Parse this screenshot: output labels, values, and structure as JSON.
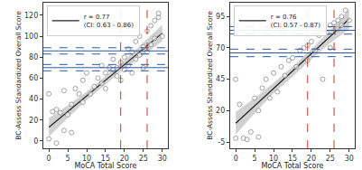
{
  "chart_data": [
    {
      "type": "scatter",
      "x_label": "MoCA Total Score",
      "y_label": "BC-Assess Standardized Overall Score",
      "xlim": [
        -1.5,
        31.5
      ],
      "ylim": [
        -7,
        132
      ],
      "xticks": [
        0,
        5,
        10,
        15,
        20,
        25,
        30
      ],
      "yticks": [
        0,
        20,
        40,
        60,
        80,
        100,
        120
      ],
      "grid": false,
      "legend": "upper left",
      "marker": "open_circle",
      "color": "#8a8a8a",
      "x": [
        0,
        1,
        2,
        3,
        4,
        5,
        6,
        7,
        8,
        9,
        9,
        10,
        11,
        12,
        13,
        14,
        14,
        15,
        15,
        16,
        17,
        17,
        18,
        18,
        19,
        19,
        20,
        20,
        21,
        21,
        22,
        22,
        23,
        23,
        24,
        24,
        25,
        25,
        26,
        26,
        27,
        27,
        28,
        28,
        29,
        29,
        30,
        0,
        2,
        4,
        6
      ],
      "y": [
        45,
        28,
        30,
        27,
        48,
        25,
        35,
        50,
        45,
        37,
        58,
        65,
        45,
        52,
        60,
        55,
        72,
        65,
        50,
        70,
        68,
        78,
        62,
        70,
        75,
        58,
        80,
        68,
        72,
        88,
        85,
        65,
        78,
        95,
        82,
        100,
        90,
        70,
        85,
        105,
        92,
        110,
        98,
        115,
        118,
        122,
        100,
        2,
        -2,
        10,
        8
      ],
      "fit": {
        "name": [
          "r = 0.77",
          "(CI: 0.63 - 0.86)"
        ],
        "color": "#222222",
        "x": [
          0,
          30
        ],
        "y": [
          13,
          103
        ]
      },
      "band": {
        "x": [
          0,
          5,
          10,
          15,
          20,
          25,
          30
        ],
        "lower": [
          4,
          22,
          39,
          54,
          69,
          82,
          95
        ],
        "upper": [
          22,
          34,
          47,
          62,
          77,
          94,
          111
        ]
      },
      "hlines": [
        {
          "value": 70,
          "line_style": "solid",
          "color": "#2c5aa0"
        },
        {
          "value": 67,
          "line_style": "dashed",
          "color": "#2c5aa0"
        },
        {
          "value": 73,
          "line_style": "dashed",
          "color": "#2c5aa0"
        },
        {
          "value": 86,
          "line_style": "solid",
          "color": "#2c5aa0"
        },
        {
          "value": 83,
          "line_style": "dashed",
          "color": "#2c5aa0"
        },
        {
          "value": 89,
          "line_style": "dashed",
          "color": "#2c5aa0"
        }
      ],
      "vlines": [
        {
          "value": 19,
          "line_style": "dashed",
          "color": "#c0392b"
        },
        {
          "value": 26,
          "line_style": "dashed",
          "color": "#c0392b"
        }
      ]
    },
    {
      "type": "scatter",
      "x_label": "MoCA Total Score",
      "y_label": "BC-Assess Standardized Overall Score",
      "xlim": [
        -1.5,
        31.5
      ],
      "ylim": [
        -10,
        106
      ],
      "xticks": [
        0,
        5,
        10,
        15,
        20,
        25,
        30
      ],
      "yticks": [
        -5,
        20,
        45,
        70,
        95
      ],
      "grid": false,
      "legend": "upper left",
      "marker": "open_circle",
      "color": "#8a8a8a",
      "x": [
        0,
        1,
        2,
        3,
        4,
        5,
        6,
        7,
        8,
        9,
        10,
        11,
        12,
        13,
        14,
        15,
        16,
        17,
        18,
        19,
        19,
        20,
        21,
        22,
        23,
        23,
        24,
        25,
        25,
        26,
        27,
        27,
        28,
        29,
        30,
        28,
        0,
        6
      ],
      "y": [
        45,
        25,
        -2,
        -3,
        3,
        30,
        20,
        38,
        45,
        30,
        50,
        35,
        55,
        48,
        60,
        62,
        55,
        68,
        70,
        72,
        60,
        75,
        68,
        80,
        85,
        45,
        82,
        88,
        70,
        90,
        92,
        85,
        95,
        100,
        92,
        88,
        -2,
        -1
      ],
      "fit": {
        "name": [
          "r = 0.76",
          "(CI: 0.57 - 0.87)"
        ],
        "color": "#222222",
        "x": [
          0,
          30
        ],
        "y": [
          10,
          93
        ]
      },
      "band": {
        "x": [
          0,
          5,
          10,
          15,
          20,
          25,
          30
        ],
        "lower": [
          1,
          18,
          34,
          47,
          61,
          74,
          85
        ],
        "upper": [
          19,
          30,
          42,
          55,
          69,
          84,
          101
        ]
      },
      "hlines": [
        {
          "value": 66,
          "line_style": "solid",
          "color": "#2c5aa0"
        },
        {
          "value": 63,
          "line_style": "dashed",
          "color": "#2c5aa0"
        },
        {
          "value": 69,
          "line_style": "dashed",
          "color": "#2c5aa0"
        },
        {
          "value": 84,
          "line_style": "solid",
          "color": "#2c5aa0"
        },
        {
          "value": 81,
          "line_style": "dashed",
          "color": "#2c5aa0"
        },
        {
          "value": 87,
          "line_style": "dashed",
          "color": "#2c5aa0"
        }
      ],
      "vlines": [
        {
          "value": 19,
          "line_style": "dashed",
          "color": "#c0392b"
        },
        {
          "value": 26,
          "line_style": "dashed",
          "color": "#c0392b"
        }
      ]
    }
  ]
}
